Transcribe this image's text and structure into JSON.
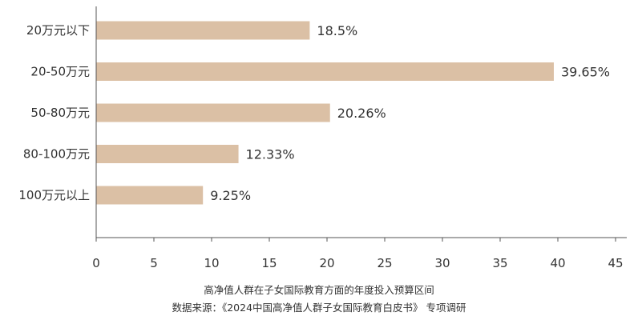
{
  "chart_data": {
    "type": "bar",
    "orientation": "horizontal",
    "categories": [
      "20万元以下",
      "20-50万元",
      "50-80万元",
      "80-100万元",
      "100万元以上"
    ],
    "values": [
      18.5,
      39.65,
      20.26,
      12.33,
      9.25
    ],
    "value_labels": [
      "18.5%",
      "39.65%",
      "20.26%",
      "12.33%",
      "9.25%"
    ],
    "xlim": [
      0,
      45
    ],
    "xticks": [
      0,
      5,
      10,
      15,
      20,
      25,
      30,
      35,
      40,
      45
    ],
    "grid": false,
    "bar_color": "#dbc0a5",
    "axis_color": "#555555"
  },
  "captions": {
    "line1": "高净值人群在子女国际教育方面的年度投入预算区间",
    "line2": "数据来源：《2024中国高净值人群子女国际教育白皮书》 专项调研"
  }
}
